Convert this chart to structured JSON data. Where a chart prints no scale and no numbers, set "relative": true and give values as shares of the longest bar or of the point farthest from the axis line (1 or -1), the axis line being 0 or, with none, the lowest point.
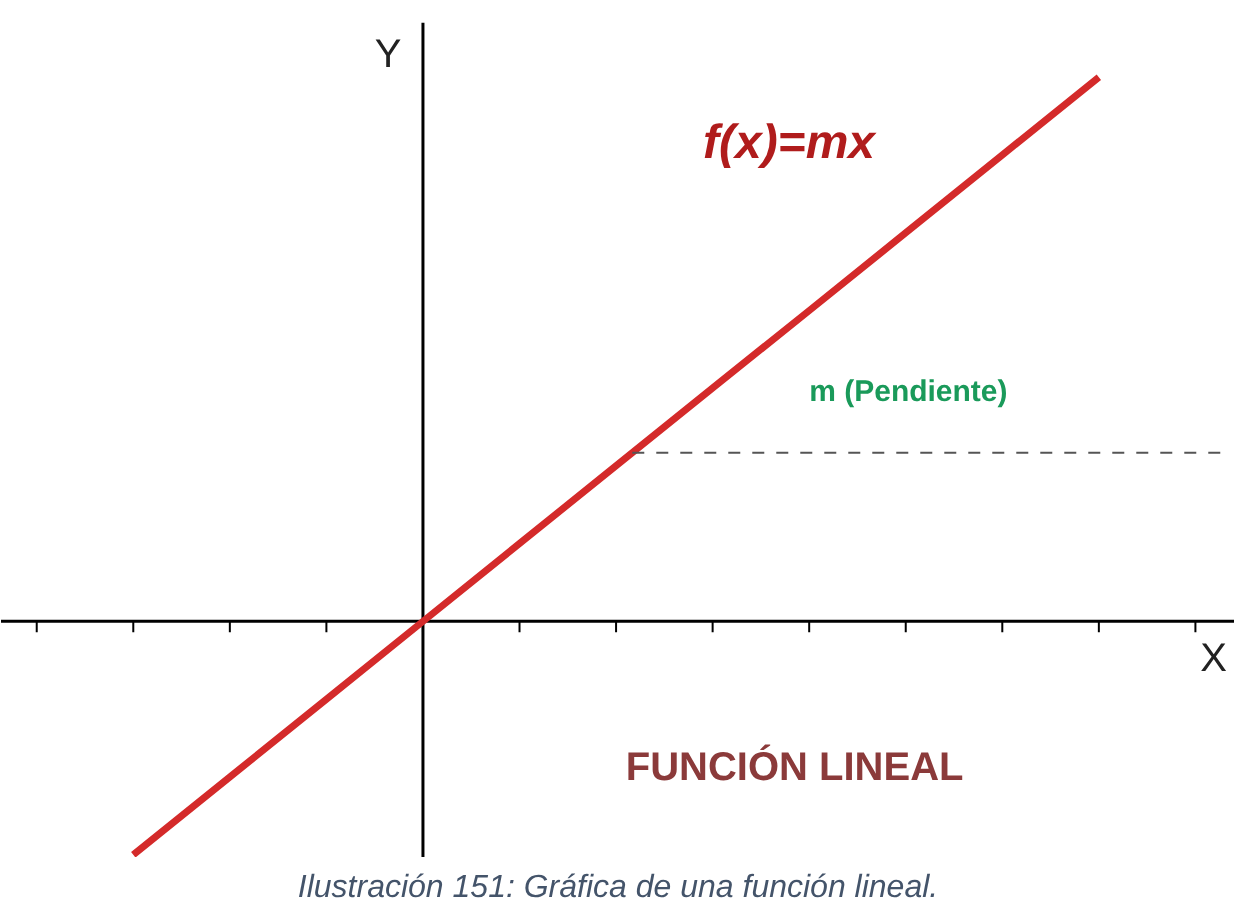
{
  "chart_data": {
    "type": "line",
    "relative": true,
    "xlabel": "X",
    "ylabel": "Y",
    "categories": [
      null,
      null,
      null,
      null,
      null,
      null,
      null,
      null,
      null,
      null,
      null,
      null,
      null
    ],
    "series": [
      {
        "color": "#d42a2a",
        "values": [
          null,
          -0.429,
          -0.286,
          -0.143,
          0,
          0.143,
          0.286,
          0.429,
          0.571,
          0.714,
          0.857,
          1,
          null
        ]
      }
    ],
    "ref_lines": [
      {
        "axis": "y",
        "value": 0.31,
        "color": "#555555",
        "line_style": "dashed"
      }
    ],
    "annotations": [
      "f(x)=mx",
      "m (Pendiente)",
      "FUNCIÓN LINEAL",
      "Ilustración 151: Gráfica de una función lineal."
    ],
    "grid": false,
    "marker": "none",
    "line_style": "solid"
  }
}
